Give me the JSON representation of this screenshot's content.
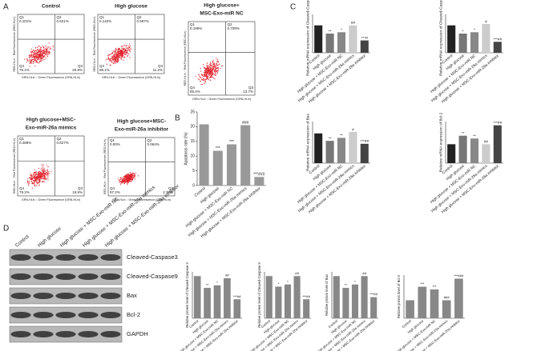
{
  "panel_labels": [
    "A",
    "B",
    "C",
    "D"
  ],
  "flow": {
    "y_axis_label": "RED-HLin :: Red Fluorescence (RED-HLin)",
    "x_axis_label": "GRN-HLin :: Green Fluorescence (GRN-HLin)",
    "plots": [
      {
        "title_lines": [
          "Control"
        ],
        "quadrants": [
          {
            "name": "Q1",
            "value": "0.101%"
          },
          {
            "name": "Q2",
            "value": "0.621%"
          },
          {
            "name": "Q4",
            "value": "79.1%"
          },
          {
            "name": "Q3",
            "value": "20.8%"
          }
        ]
      },
      {
        "title_lines": [
          "High glucose"
        ],
        "quadrants": [
          {
            "name": "Q1",
            "value": "0.142%"
          },
          {
            "name": "Q2",
            "value": "0.597%"
          },
          {
            "name": "Q4",
            "value": "88.1%"
          },
          {
            "name": "Q3",
            "value": "11.2%"
          }
        ]
      },
      {
        "title_lines": [
          "High glucose+",
          "MSC-Exo-miR NC"
        ],
        "quadrants": [
          {
            "name": "Q1",
            "value": "0.199%"
          },
          {
            "name": "Q2",
            "value": "0.709%"
          },
          {
            "name": "Q4",
            "value": "85.4%"
          },
          {
            "name": "Q3",
            "value": "13.7%"
          }
        ]
      },
      {
        "title_lines": [
          "High glucose+MSC-",
          "Exo-miR-26a mimics"
        ],
        "quadrants": [
          {
            "name": "Q1",
            "value": "0.488%"
          },
          {
            "name": "Q2",
            "value": "0.627%"
          },
          {
            "name": "Q4",
            "value": "79.2%"
          },
          {
            "name": "Q3",
            "value": "19.8%"
          }
        ]
      },
      {
        "title_lines": [
          "High glucose+MSC-",
          "Exo-miR-26a inhibitor"
        ],
        "quadrants": [
          {
            "name": "Q1",
            "value": "0.00%"
          },
          {
            "name": "Q2",
            "value": "0.064%"
          },
          {
            "name": "Q4",
            "value": "97.2%"
          },
          {
            "name": "Q3",
            "value": "2.77%"
          }
        ]
      }
    ]
  },
  "chart_data": [
    {
      "type": "bar",
      "ylabel": "Apoptosis rate (%)",
      "categories": [
        "Control",
        "High glucose",
        "High glucose + MSC-Exo-miR NC",
        "High glucose + MSC-Exo-miR-26a mimics",
        "High glucose + MSC-Exo-miR-26a inhibitor"
      ],
      "values": [
        20.8,
        11.8,
        14.0,
        20.5,
        2.9
      ],
      "annotations": [
        null,
        "***",
        "***",
        "###",
        "***###"
      ],
      "colors": [
        "#999999",
        "#999999",
        "#999999",
        "#999999",
        "#999999"
      ],
      "ylim": [
        0,
        25
      ],
      "yticks": [
        0,
        5,
        10,
        15,
        20,
        25
      ]
    },
    {
      "type": "bar",
      "ylabel": "Relative mRNA expression of Cleaved-Caspase 3",
      "categories": [
        "Control",
        "High glucose",
        "High glucose + MSC-Exo-miR NC",
        "High glucose + MSC-Exo-miR-26a mimics",
        "High glucose + MSC-Exo-miR-26a inhibitor"
      ],
      "values": [
        1.0,
        0.7,
        0.75,
        1.0,
        0.45
      ],
      "annotations": [
        null,
        "**",
        "*",
        "##",
        "***#"
      ],
      "colors": [
        "#222222",
        "#777777",
        "#888888",
        "#cccccc",
        "#444444"
      ],
      "ylim": [
        0,
        1.4
      ]
    },
    {
      "type": "bar",
      "ylabel": "Relative mRNA expression of Cleaved-Caspase 9",
      "categories": [
        "Control",
        "High glucose",
        "High glucose + MSC-Exo-miR NC",
        "High glucose + MSC-Exo-miR-26a mimics",
        "High glucose + MSC-Exo-miR-26a inhibitor"
      ],
      "values": [
        1.0,
        0.7,
        0.75,
        1.05,
        0.4
      ],
      "annotations": [
        null,
        "*",
        "*",
        "#",
        "***##"
      ],
      "colors": [
        "#222222",
        "#777777",
        "#888888",
        "#cccccc",
        "#444444"
      ],
      "ylim": [
        0,
        1.4
      ]
    },
    {
      "type": "bar",
      "ylabel": "Relative mRNA expression of Bax",
      "categories": [
        "Control",
        "High glucose",
        "High glucose + MSC-Exo-miR NC",
        "High glucose + MSC-Exo-miR-26a mimics",
        "High glucose + MSC-Exo-miR-26a inhibitor"
      ],
      "values": [
        1.0,
        0.75,
        0.85,
        1.05,
        0.65
      ],
      "annotations": [
        null,
        "**",
        "**",
        "#",
        "***##"
      ],
      "colors": [
        "#222222",
        "#777777",
        "#888888",
        "#cccccc",
        "#444444"
      ],
      "ylim": [
        0,
        1.4
      ]
    },
    {
      "type": "bar",
      "ylabel": "Relative mRNA expression of Bcl-2",
      "categories": [
        "Control",
        "High glucose",
        "High glucose + MSC-Exo-miR NC",
        "High glucose + MSC-Exo-miR-26a mimics",
        "High glucose + MSC-Exo-miR-26a inhibitor"
      ],
      "values": [
        1.0,
        1.45,
        1.3,
        1.0,
        2.0
      ],
      "annotations": [
        null,
        "**",
        "**",
        "##",
        "***##"
      ],
      "colors": [
        "#222222",
        "#777777",
        "#888888",
        "#cccccc",
        "#444444"
      ],
      "ylim": [
        0,
        2.2
      ]
    },
    {
      "type": "bar",
      "ylabel": "Relative protein level of Cleaved-Caspase 3",
      "categories": [
        "Control",
        "High glucose",
        "High glucose + MSC-Exo-miR NC",
        "High glucose + MSC-Exo-miR-26a mimics",
        "High glucose + MSC-Exo-miR-26a inhibitor"
      ],
      "values": [
        1.0,
        0.72,
        0.78,
        0.95,
        0.45
      ],
      "annotations": [
        null,
        "**",
        "*",
        "##",
        "***##"
      ],
      "colors": [
        "#888888",
        "#888888",
        "#888888",
        "#888888",
        "#888888"
      ],
      "ylim": [
        0,
        1.1
      ]
    },
    {
      "type": "bar",
      "ylabel": "Relative protein level of Cleaved-Caspase 9",
      "categories": [
        "Control",
        "High glucose",
        "High glucose + MSC-Exo-miR NC",
        "High glucose + MSC-Exo-miR-26a mimics",
        "High glucose + MSC-Exo-miR-26a inhibitor"
      ],
      "values": [
        1.0,
        0.75,
        0.8,
        1.0,
        0.45
      ],
      "annotations": [
        null,
        "*",
        "*",
        "##",
        "***##"
      ],
      "colors": [
        "#888888",
        "#888888",
        "#888888",
        "#888888",
        "#888888"
      ],
      "ylim": [
        0,
        1.1
      ]
    },
    {
      "type": "bar",
      "ylabel": "Relative protein level of Bax",
      "categories": [
        "Control",
        "High glucose",
        "High glucose + MSC-Exo-miR NC",
        "High glucose + MSC-Exo-miR-26a mimics",
        "High glucose + MSC-Exo-miR-26a inhibitor"
      ],
      "values": [
        1.0,
        0.72,
        0.8,
        1.0,
        0.5
      ],
      "annotations": [
        null,
        "**",
        "*",
        "##",
        "***##"
      ],
      "colors": [
        "#888888",
        "#888888",
        "#888888",
        "#888888",
        "#888888"
      ],
      "ylim": [
        0,
        1.1
      ]
    },
    {
      "type": "bar",
      "ylabel": "Relative protein level of Bcl-2",
      "categories": [
        "Control",
        "High glucose",
        "High glucose + MSC-Exo-miR NC",
        "High glucose + MSC-Exo-miR-26a mimics",
        "High glucose + MSC-Exo-miR-26a inhibitor"
      ],
      "values": [
        1.0,
        1.75,
        1.6,
        1.0,
        2.2
      ],
      "annotations": [
        null,
        "***",
        "***",
        "###",
        "***###"
      ],
      "colors": [
        "#888888",
        "#888888",
        "#888888",
        "#888888",
        "#888888"
      ],
      "ylim": [
        0,
        2.4
      ]
    }
  ],
  "blot": {
    "columns": [
      "Control",
      "High glucose",
      "High glucose + MSC-Exo-miR NC",
      "High glucose + MSC-Exo-miR-26a mimics",
      "High glucose + MSC-Exo-miR-26a inhibitor"
    ],
    "rows": [
      "Cleaved-Caspase3",
      "Cleaved-Caspase9",
      "Bax",
      "Bcl-2",
      "GAPDH"
    ]
  }
}
